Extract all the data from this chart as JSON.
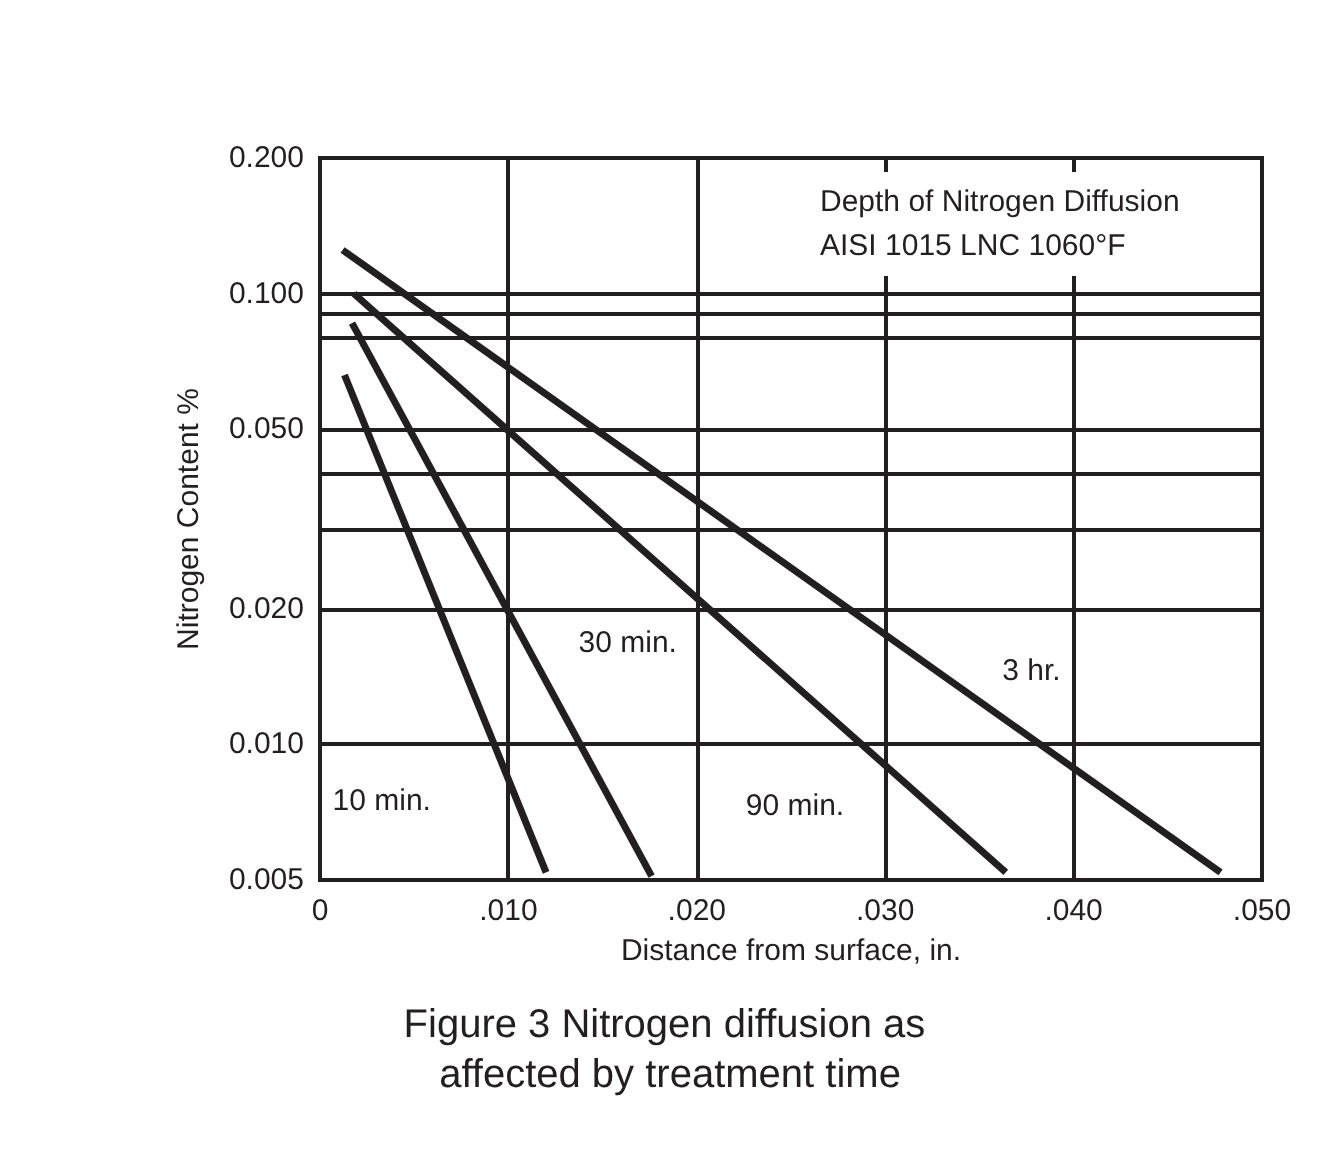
{
  "chart_data": {
    "type": "line",
    "title": "Depth of Nitrogen Diffusion AISI 1015 LNC 1060°F",
    "xlabel": "Distance from surface, in.",
    "ylabel": "Nitrogen Content %",
    "log": "y",
    "grid": true,
    "marker": "none",
    "line_style": "solid",
    "xlim": [
      0,
      0.05
    ],
    "xticks": [
      {
        "value": 0,
        "label": "0"
      },
      {
        "value": 0.01,
        "label": ".010"
      },
      {
        "value": 0.02,
        "label": ".020"
      },
      {
        "value": 0.03,
        "label": ".030"
      },
      {
        "value": 0.04,
        "label": ".040"
      },
      {
        "value": 0.05,
        "label": ".050"
      }
    ],
    "ylim": [
      0.005,
      0.2
    ],
    "yticks": [
      {
        "value": 0.005,
        "label": "0.005"
      },
      {
        "value": 0.01,
        "label": "0.010"
      },
      {
        "value": 0.02,
        "label": "0.020"
      },
      {
        "value": 0.03,
        "label": null
      },
      {
        "value": 0.04,
        "label": null
      },
      {
        "value": 0.05,
        "label": "0.050"
      },
      {
        "value": 0.08,
        "label": null
      },
      {
        "value": 0.09,
        "label": null
      },
      {
        "value": 0.1,
        "label": "0.100"
      },
      {
        "value": 0.2,
        "label": "0.200"
      }
    ],
    "series": [
      {
        "name": "10 min.",
        "color": "#231f20",
        "x": [
          0.0013,
          0.012
        ],
        "values": [
          0.066,
          0.0052
        ]
      },
      {
        "name": "30 min.",
        "color": "#231f20",
        "x": [
          0.0017,
          0.0176
        ],
        "values": [
          0.086,
          0.0051
        ]
      },
      {
        "name": "90 min.",
        "color": "#231f20",
        "x": [
          0.0018,
          0.0364
        ],
        "values": [
          0.1,
          0.0052
        ]
      },
      {
        "name": "3 hr.",
        "color": "#231f20",
        "x": [
          0.0012,
          0.0478
        ],
        "values": [
          0.125,
          0.0052
        ]
      }
    ],
    "annotations": [
      "Figure 3 Nitrogen diffusion as affected by treatment time"
    ]
  }
}
